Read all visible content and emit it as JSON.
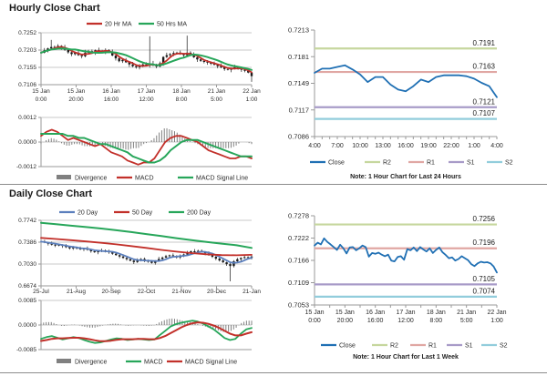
{
  "colors": {
    "candle": "#1a1a1a",
    "ma_red": "#c2302a",
    "ma_green": "#27a65a",
    "ma_blue": "#5b7fbd",
    "close_blue": "#2070b4",
    "level_r2": "#c6d79e",
    "level_r1": "#e0a7a3",
    "level_s1": "#a89bc8",
    "level_s2": "#92cddc",
    "divergence": "#808080",
    "grid": "#c9c9c9",
    "axis": "#9a9a9a",
    "text": "#2b2b2b"
  },
  "chart_data": [
    {
      "id": "hourly-main",
      "type": "candlestick",
      "title": "Hourly Close Chart",
      "y_ticks": [
        "0.7252",
        "0.7203",
        "0.7155",
        "0.7106"
      ],
      "y_max": 0.7252,
      "y_min": 0.7106,
      "x_labels": [
        [
          "15 Jan",
          "0:00"
        ],
        [
          "15 Jan",
          "20:00"
        ],
        [
          "16 Jan",
          "16:00"
        ],
        [
          "17 Jan",
          "12:00"
        ],
        [
          "18 Jan",
          "8:00"
        ],
        [
          "21 Jan",
          "5:00"
        ],
        [
          "22 Jan",
          "1:00"
        ]
      ],
      "legend": [
        {
          "label": "20 Hr MA",
          "color": "ma_red",
          "type": "line"
        },
        {
          "label": "50 Hrs MA",
          "color": "ma_green",
          "type": "line"
        }
      ],
      "close": [
        0.7196,
        0.7203,
        0.7208,
        0.7212,
        0.721,
        0.7215,
        0.7211,
        0.7204,
        0.7197,
        0.7192,
        0.7196,
        0.7189,
        0.7186,
        0.7196,
        0.72,
        0.7197,
        0.7203,
        0.7201,
        0.7198,
        0.7203,
        0.7199,
        0.7188,
        0.718,
        0.7172,
        0.7176,
        0.7169,
        0.7163,
        0.7158,
        0.7155,
        0.7159,
        0.7163,
        0.716,
        0.7165,
        0.7161,
        0.7157,
        0.7166,
        0.7184,
        0.7189,
        0.7192,
        0.7195,
        0.7196,
        0.7192,
        0.7189,
        0.7196,
        0.7192,
        0.7183,
        0.7177,
        0.7173,
        0.717,
        0.7168,
        0.7165,
        0.7162,
        0.7158,
        0.7155,
        0.715,
        0.7148,
        0.7152,
        0.7155,
        0.7152,
        0.7148,
        0.7145,
        0.714,
        0.713
      ],
      "wig_hi_cycle": [
        0.0003,
        0.0006,
        0.0002,
        0.0008,
        0.0004,
        0.0005,
        0.0002,
        0.0007,
        0.0003,
        0.0005
      ],
      "wig_lo_cycle": [
        0.0004,
        0.0002,
        0.0006,
        0.0003,
        0.0005,
        0.0002,
        0.0007,
        0.0003,
        0.0004,
        0.0006
      ],
      "wig_hi_spikes": {
        "3": 0.0012,
        "32": 0.0075,
        "43": 0.004
      },
      "wig_lo_spikes": {
        "62": 0.001
      },
      "ma_short_window": 4,
      "ma_long_window": 10,
      "macd": {
        "y_ticks": [
          "0.0012",
          "0.0000",
          "-0.0012"
        ],
        "y_max": 0.0012,
        "macd_color": "ma_red",
        "signal_color": "ma_green",
        "legend": [
          {
            "label": "Divergence",
            "color": "divergence",
            "type": "bar"
          },
          {
            "label": "MACD",
            "color": "ma_red",
            "type": "line"
          },
          {
            "label": "MACD Signal Line",
            "color": "ma_green",
            "type": "line"
          }
        ],
        "macd_values": [
          0.0003,
          0.0005,
          0.0006,
          0.0005,
          0.0003,
          0.0001,
          0.0002,
          0.0001,
          0.0,
          -0.0001,
          -0.0002,
          -0.0001,
          -0.0003,
          -0.0005,
          -0.0006,
          -0.0007,
          -0.0009,
          -0.001,
          -0.0011,
          -0.001,
          -0.001,
          -0.0008,
          -0.0004,
          0.0,
          0.0002,
          0.0003,
          0.0003,
          0.0002,
          0.0001,
          0.0,
          -0.0002,
          -0.0004,
          -0.0005,
          -0.0006,
          -0.0007,
          -0.0008,
          -0.0008,
          -0.0007,
          -0.0007,
          -0.0008
        ],
        "signal_values": [
          0.0004,
          0.0004,
          0.0004,
          0.0004,
          0.0004,
          0.0003,
          0.0003,
          0.0002,
          0.0002,
          0.0001,
          0.0,
          -0.0001,
          -0.0001,
          -0.0002,
          -0.0003,
          -0.0004,
          -0.0005,
          -0.0007,
          -0.0008,
          -0.0009,
          -0.001,
          -0.001,
          -0.0009,
          -0.0007,
          -0.0004,
          -0.0002,
          0.0,
          0.0001,
          0.0001,
          0.0001,
          0.0,
          -0.0001,
          -0.0002,
          -0.0003,
          -0.0004,
          -0.0005,
          -0.0006,
          -0.0007,
          -0.0007,
          -0.0007
        ]
      }
    },
    {
      "id": "hourly-sr",
      "type": "line",
      "note": "Note: 1 Hour Chart for Last 24 Hours",
      "y_ticks": [
        "0.7213",
        "0.7181",
        "0.7149",
        "0.7117",
        "0.7086"
      ],
      "y_max": 0.7213,
      "y_min": 0.7086,
      "x_labels": [
        "4:00",
        "7:00",
        "10:00",
        "13:00",
        "16:00",
        "19:00",
        "22:00",
        "1:00",
        "4:00"
      ],
      "levels": [
        {
          "name": "R2",
          "label": "0.7191",
          "value": 0.7191,
          "color": "level_r2"
        },
        {
          "name": "R1",
          "label": "0.7163",
          "value": 0.7163,
          "color": "level_r1"
        },
        {
          "name": "S1",
          "label": "0.7121",
          "value": 0.7121,
          "color": "level_s1"
        },
        {
          "name": "S2",
          "label": "0.7107",
          "value": 0.7107,
          "color": "level_s2"
        }
      ],
      "legend": [
        {
          "label": "Close",
          "color": "close_blue",
          "type": "line"
        },
        {
          "label": "R2",
          "color": "level_r2",
          "type": "line"
        },
        {
          "label": "R1",
          "color": "level_r1",
          "type": "line"
        },
        {
          "label": "S1",
          "color": "level_s1",
          "type": "line"
        },
        {
          "label": "S2",
          "color": "level_s2",
          "type": "line"
        }
      ],
      "close": [
        0.7162,
        0.7167,
        0.7167,
        0.7169,
        0.7171,
        0.7166,
        0.716,
        0.7151,
        0.7157,
        0.7157,
        0.7148,
        0.7142,
        0.714,
        0.7146,
        0.7154,
        0.7151,
        0.7157,
        0.7159,
        0.7159,
        0.7159,
        0.7158,
        0.7155,
        0.715,
        0.7146,
        0.7133
      ]
    },
    {
      "id": "daily-main",
      "type": "candlestick",
      "title": "Daily Close Chart",
      "y_ticks": [
        "0.7742",
        "0.7386",
        "0.7030",
        "0.6674"
      ],
      "y_max": 0.7742,
      "y_min": 0.6674,
      "x_labels": [
        "25-Jul",
        "21-Aug",
        "20-Sep",
        "22-Oct",
        "21-Nov",
        "20-Dec",
        "21-Jan"
      ],
      "legend": [
        {
          "label": "20 Day",
          "color": "ma_blue",
          "type": "line"
        },
        {
          "label": "50 Day",
          "color": "ma_red",
          "type": "line"
        },
        {
          "label": "200 Day",
          "color": "ma_green",
          "type": "line"
        }
      ],
      "close": [
        0.7395,
        0.738,
        0.736,
        0.7345,
        0.733,
        0.734,
        0.7325,
        0.7305,
        0.7285,
        0.73,
        0.7285,
        0.7268,
        0.728,
        0.7262,
        0.7238,
        0.7222,
        0.7238,
        0.7252,
        0.724,
        0.7222,
        0.7198,
        0.7175,
        0.7152,
        0.713,
        0.7108,
        0.7085,
        0.7062,
        0.7092,
        0.7112,
        0.7088,
        0.7068,
        0.7048,
        0.7082,
        0.7112,
        0.7135,
        0.7158,
        0.7172,
        0.7158,
        0.7138,
        0.7162,
        0.7185,
        0.7215,
        0.7238,
        0.7222,
        0.7245,
        0.7228,
        0.7205,
        0.7178,
        0.7148,
        0.7118,
        0.7088,
        0.7058,
        0.7028,
        0.6998,
        0.7075,
        0.7108,
        0.7128,
        0.7142,
        0.713,
        0.7152
      ],
      "wig_hi_cycle": [
        0.0015,
        0.0028,
        0.001,
        0.0035,
        0.0018,
        0.0022,
        0.0012,
        0.003,
        0.0015,
        0.0024
      ],
      "wig_lo_cycle": [
        0.0018,
        0.001,
        0.0028,
        0.0014,
        0.0024,
        0.001,
        0.0032,
        0.0015,
        0.002,
        0.0026
      ],
      "wig_hi_spikes": {},
      "wig_lo_spikes": {
        "53": 0.0235
      },
      "ma_short_window": 5,
      "ma50_points": [
        0.7455,
        0.7438,
        0.7418,
        0.7398,
        0.7375,
        0.735,
        0.7322,
        0.7292,
        0.726,
        0.7232,
        0.7208,
        0.7188,
        0.7175,
        0.7172,
        0.718
      ],
      "ma200_points": [
        0.77,
        0.7678,
        0.7655,
        0.7632,
        0.7608,
        0.758,
        0.755,
        0.7518,
        0.7485,
        0.7452,
        0.742,
        0.739,
        0.7362,
        0.7335,
        0.7292
      ],
      "macd": {
        "y_ticks": [
          "0.0085",
          "0.0000",
          "-0.0085"
        ],
        "y_max": 0.0085,
        "macd_color": "ma_green",
        "signal_color": "ma_red",
        "legend": [
          {
            "label": "Divergence",
            "color": "divergence",
            "type": "bar"
          },
          {
            "label": "MACD",
            "color": "ma_green",
            "type": "line"
          },
          {
            "label": "MACD Signal Line",
            "color": "ma_red",
            "type": "line"
          }
        ],
        "macd_values": [
          -0.0048,
          -0.0042,
          -0.0038,
          -0.0044,
          -0.005,
          -0.0046,
          -0.0042,
          -0.0045,
          -0.0052,
          -0.0058,
          -0.0062,
          -0.006,
          -0.0055,
          -0.005,
          -0.0046,
          -0.0048,
          -0.0052,
          -0.005,
          -0.0048,
          -0.005,
          -0.0052,
          -0.005,
          -0.0035,
          -0.002,
          -0.0005,
          0.0003,
          0.0008,
          0.0012,
          0.0015,
          0.0012,
          0.0005,
          -0.0005,
          -0.0015,
          -0.003,
          -0.0045,
          -0.0052,
          -0.0048,
          -0.003,
          -0.0015,
          -0.001
        ],
        "signal_values": [
          -0.0055,
          -0.0052,
          -0.0048,
          -0.0046,
          -0.0046,
          -0.0045,
          -0.0044,
          -0.0044,
          -0.0046,
          -0.0049,
          -0.0053,
          -0.0056,
          -0.0056,
          -0.0054,
          -0.0051,
          -0.0049,
          -0.0049,
          -0.0049,
          -0.0048,
          -0.0048,
          -0.0049,
          -0.0049,
          -0.0045,
          -0.0038,
          -0.0028,
          -0.0018,
          -0.0008,
          0.0,
          0.0006,
          0.0009,
          0.0008,
          0.0004,
          -0.0002,
          -0.001,
          -0.002,
          -0.003,
          -0.0036,
          -0.0036,
          -0.003,
          -0.0025
        ]
      }
    },
    {
      "id": "daily-sr",
      "type": "line",
      "note": "Note: 1 Hour Chart for Last 1 Week",
      "y_ticks": [
        "0.7278",
        "0.7222",
        "0.7166",
        "0.7109",
        "0.7053"
      ],
      "y_max": 0.7278,
      "y_min": 0.7053,
      "x_labels_two_line": [
        [
          "15 Jan",
          "0:00"
        ],
        [
          "15 Jan",
          "20:00"
        ],
        [
          "16 Jan",
          "16:00"
        ],
        [
          "17 Jan",
          "12:00"
        ],
        [
          "18 Jan",
          "8:00"
        ],
        [
          "21 Jan",
          "5:00"
        ],
        [
          "22 Jan",
          "1:00"
        ]
      ],
      "levels": [
        {
          "name": "R2",
          "label": "0.7256",
          "value": 0.7256,
          "color": "level_r2"
        },
        {
          "name": "R1",
          "label": "0.7196",
          "value": 0.7196,
          "color": "level_r1"
        },
        {
          "name": "S1",
          "label": "0.7105",
          "value": 0.7105,
          "color": "level_s1"
        },
        {
          "name": "S2",
          "label": "0.7074",
          "value": 0.7074,
          "color": "level_s2"
        }
      ],
      "legend": [
        {
          "label": "Close",
          "color": "close_blue",
          "type": "line"
        },
        {
          "label": "R2",
          "color": "level_r2",
          "type": "line"
        },
        {
          "label": "R1",
          "color": "level_r1",
          "type": "line"
        },
        {
          "label": "S1",
          "color": "level_s1",
          "type": "line"
        },
        {
          "label": "S2",
          "color": "level_s2",
          "type": "line"
        }
      ],
      "close": [
        0.7203,
        0.721,
        0.7206,
        0.7221,
        0.7212,
        0.7206,
        0.7199,
        0.7192,
        0.7205,
        0.7196,
        0.7183,
        0.7198,
        0.7199,
        0.7191,
        0.7196,
        0.7203,
        0.7199,
        0.7175,
        0.7184,
        0.7182,
        0.7185,
        0.718,
        0.7176,
        0.718,
        0.7165,
        0.7163,
        0.7174,
        0.7176,
        0.7167,
        0.7194,
        0.7191,
        0.7198,
        0.7189,
        0.7199,
        0.7193,
        0.7188,
        0.7196,
        0.7184,
        0.7192,
        0.7198,
        0.7186,
        0.7179,
        0.7171,
        0.7173,
        0.7165,
        0.7169,
        0.7176,
        0.7171,
        0.7166,
        0.7156,
        0.7151,
        0.7158,
        0.7162,
        0.716,
        0.7161,
        0.7158,
        0.715,
        0.7135
      ]
    }
  ]
}
